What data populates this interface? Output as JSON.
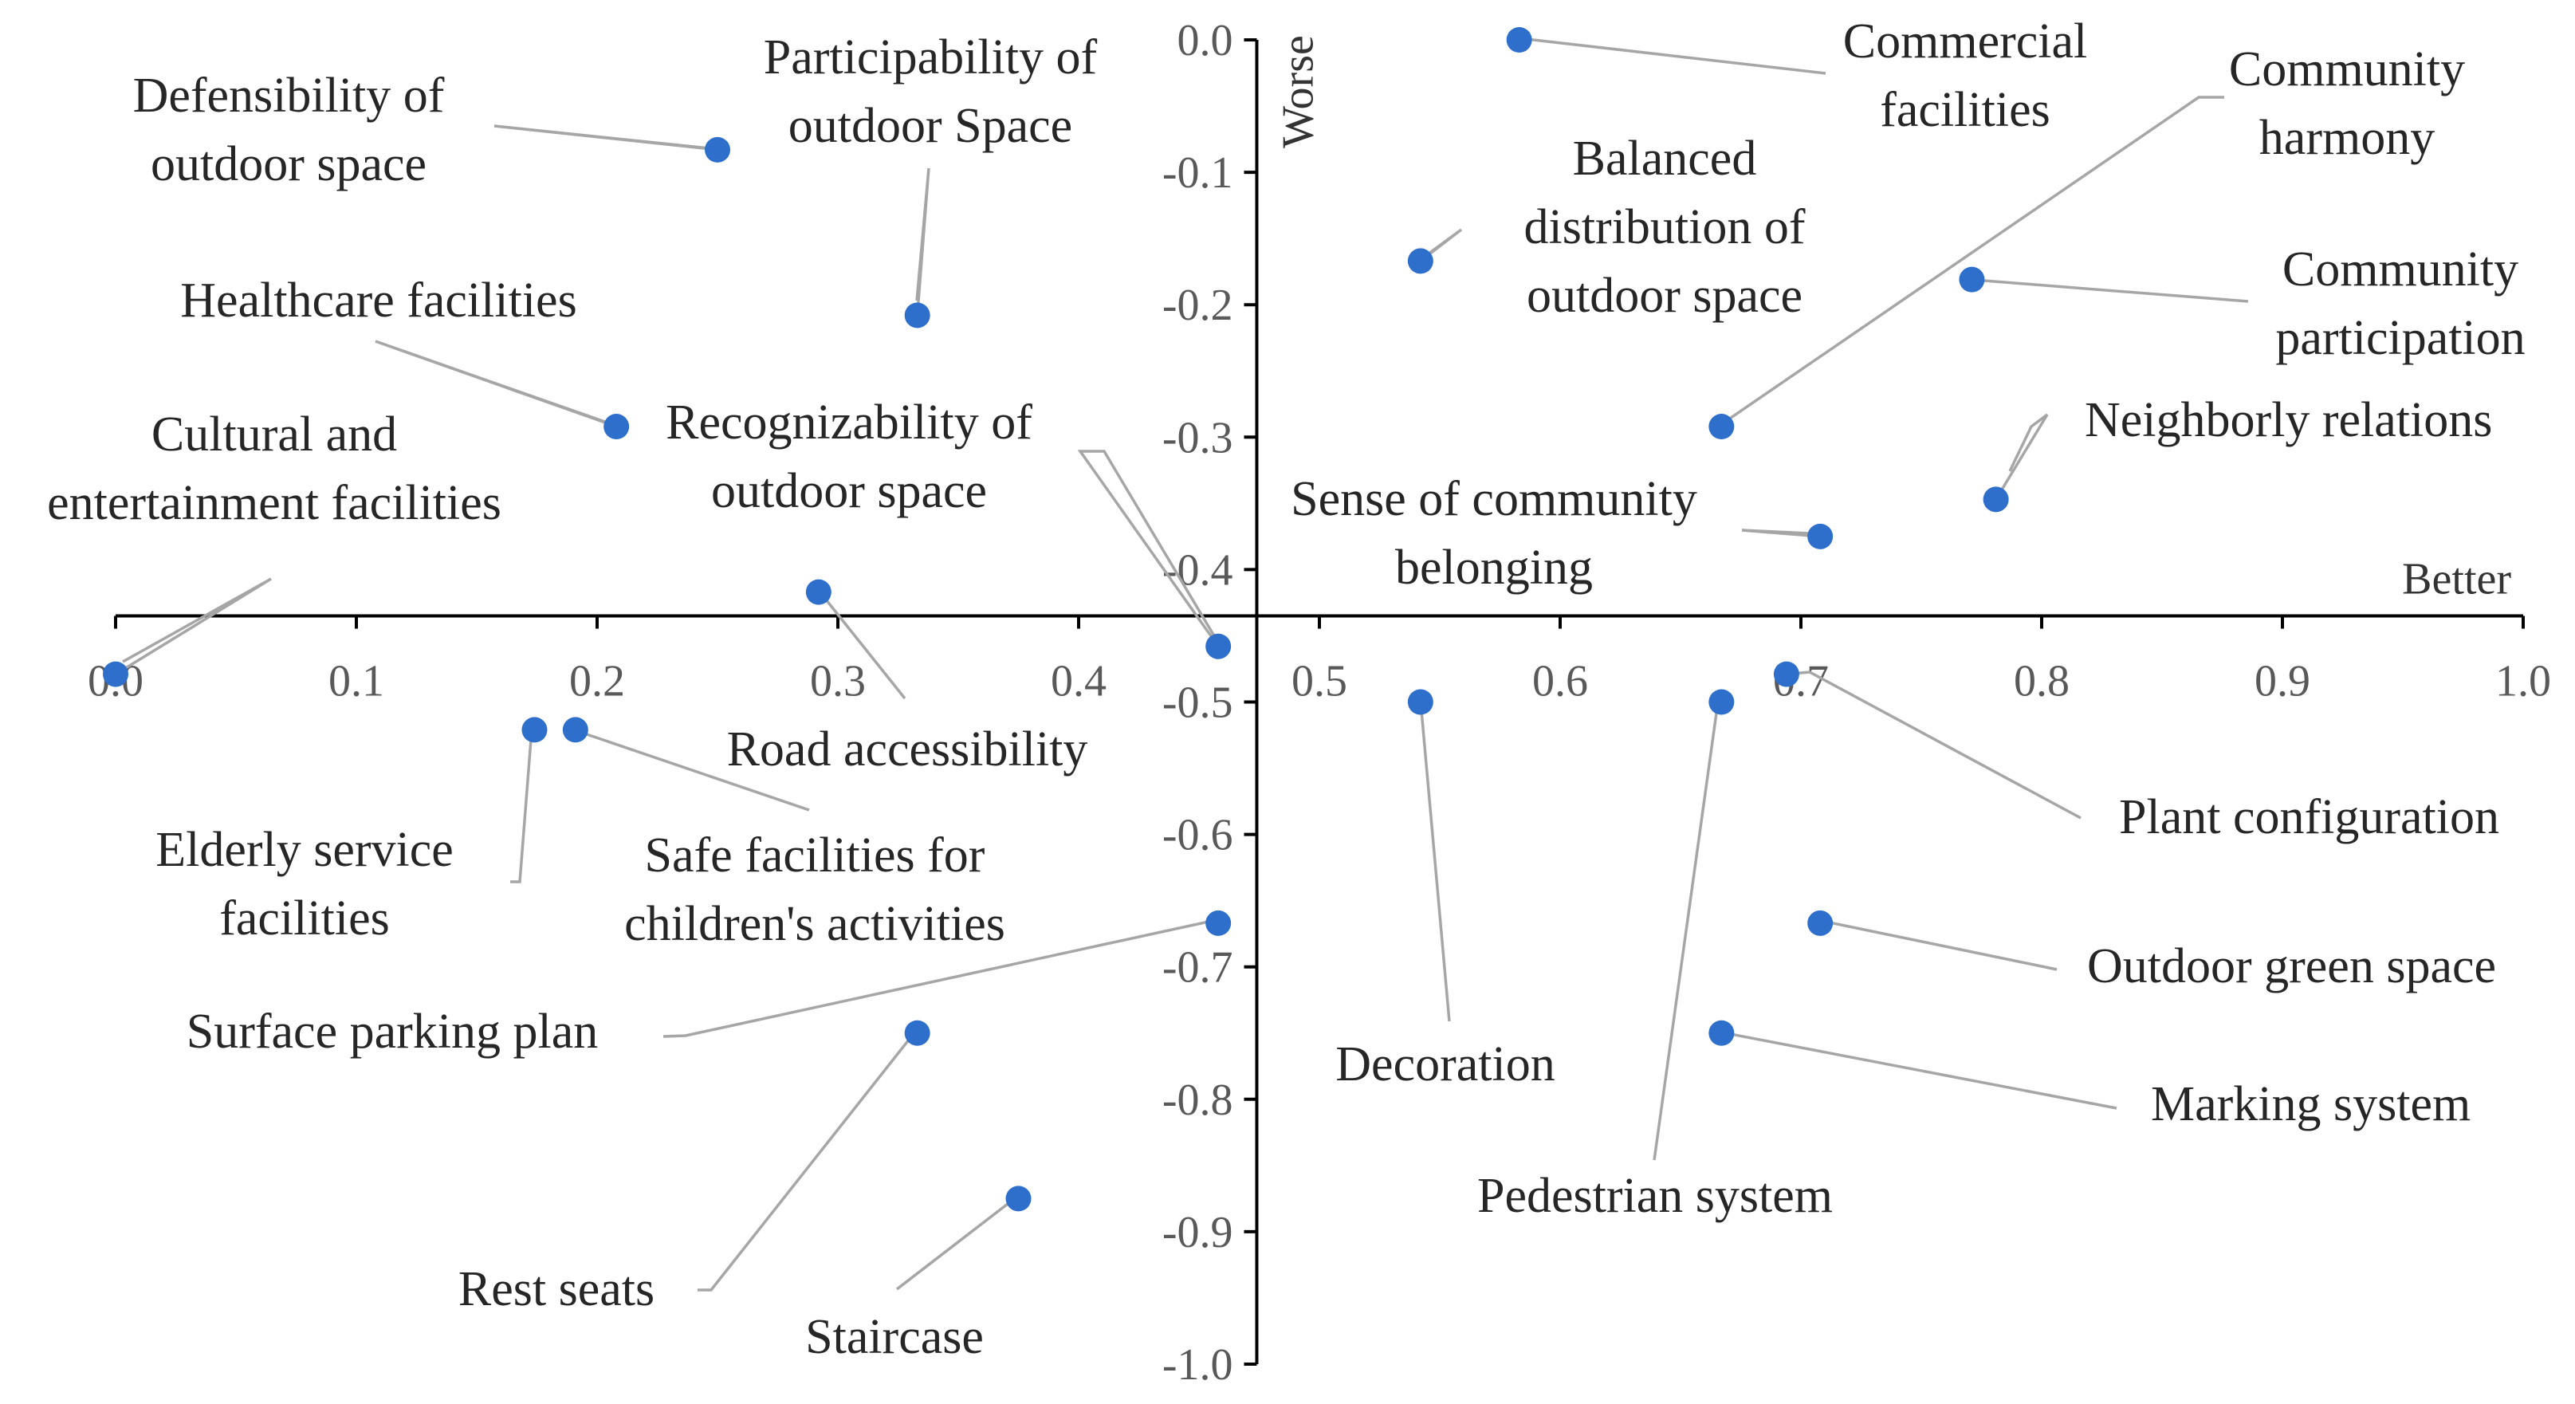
{
  "chart_data": {
    "type": "scatter",
    "title": "",
    "xlabel": "Better",
    "ylabel": "Worse",
    "xlim": [
      0.0,
      1.0
    ],
    "ylim": [
      -1.0,
      0.0
    ],
    "x_ticks": [
      "0.0",
      "0.1",
      "0.2",
      "0.3",
      "0.4",
      "0.5",
      "0.6",
      "0.7",
      "0.8",
      "0.9",
      "1.0"
    ],
    "y_ticks": [
      "0.0",
      "-0.1",
      "-0.2",
      "-0.3",
      "-0.4",
      "-0.5",
      "-0.6",
      "-0.7",
      "-0.8",
      "-0.9",
      "-1.0"
    ],
    "x_axis_crosses_y_at": -0.435,
    "y_axis_crosses_x_at": 0.474,
    "grid": false,
    "point_color": "#2e6fcc",
    "points": [
      {
        "label": [
          "Commercial",
          "facilities"
        ],
        "x": 0.583,
        "y": 0.0
      },
      {
        "label": [
          "Defensibility of",
          "outdoor space"
        ],
        "x": 0.25,
        "y": -0.083
      },
      {
        "label": [
          "Participability of",
          "outdoor Space"
        ],
        "x": 0.333,
        "y": -0.208
      },
      {
        "label": [
          "Balanced",
          "distribution of",
          "outdoor space"
        ],
        "x": 0.542,
        "y": -0.167
      },
      {
        "label": [
          "Community",
          "harmony"
        ],
        "x": 0.667,
        "y": -0.292
      },
      {
        "label": [
          "Community",
          "participation"
        ],
        "x": 0.771,
        "y": -0.181
      },
      {
        "label": [
          "Healthcare facilities"
        ],
        "x": 0.208,
        "y": -0.292
      },
      {
        "label": [
          "Neighborly relations"
        ],
        "x": 0.781,
        "y": -0.347
      },
      {
        "label": [
          "Recognizability of",
          "outdoor space"
        ],
        "x": 0.458,
        "y": -0.458
      },
      {
        "label": [
          "Cultural and",
          "entertainment facilities"
        ],
        "x": 0.0,
        "y": -0.479
      },
      {
        "label": [
          "Sense of community",
          "belonging"
        ],
        "x": 0.708,
        "y": -0.375
      },
      {
        "label": [
          "Road accessibility"
        ],
        "x": 0.292,
        "y": -0.417
      },
      {
        "label": [
          "Plant configuration"
        ],
        "x": 0.694,
        "y": -0.479
      },
      {
        "label": [
          "Elderly service",
          "facilities"
        ],
        "x": 0.174,
        "y": -0.521
      },
      {
        "label": [
          "Safe facilities for",
          "children's activities"
        ],
        "x": 0.191,
        "y": -0.521
      },
      {
        "label": [
          "Decoration"
        ],
        "x": 0.542,
        "y": -0.5
      },
      {
        "label": [
          "Pedestrian system"
        ],
        "x": 0.667,
        "y": -0.5
      },
      {
        "label": [
          "Surface parking plan"
        ],
        "x": 0.458,
        "y": -0.667
      },
      {
        "label": [
          "Outdoor green space"
        ],
        "x": 0.708,
        "y": -0.667
      },
      {
        "label": [
          "Rest seats"
        ],
        "x": 0.333,
        "y": -0.75
      },
      {
        "label": [
          "Marking system"
        ],
        "x": 0.667,
        "y": -0.75
      },
      {
        "label": [
          "Staircase"
        ],
        "x": 0.375,
        "y": -0.875
      }
    ]
  }
}
